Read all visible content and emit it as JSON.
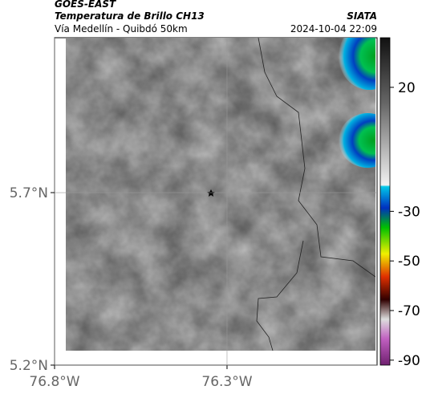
{
  "header": {
    "title": "GOES-EAST",
    "subtitle": "Temperatura de Brillo CH13",
    "region": "Vía Medellín - Quibdó 50km",
    "source": "SIATA",
    "timestamp": "2024-10-04 22:09"
  },
  "map": {
    "xlim": [
      -76.8,
      -75.865
    ],
    "ylim": [
      5.2,
      6.149
    ],
    "xticks": [
      {
        "value": -76.8,
        "label": "76.8°W"
      },
      {
        "value": -76.3,
        "label": "76.3°W"
      }
    ],
    "yticks": [
      {
        "value": 5.2,
        "label": "5.2°N"
      },
      {
        "value": 5.7,
        "label": "5.7°N"
      }
    ]
  },
  "colorbar": {
    "lim": [
      -92,
      40
    ],
    "ticks": [
      20,
      -30,
      -50,
      -70,
      -90
    ]
  }
}
